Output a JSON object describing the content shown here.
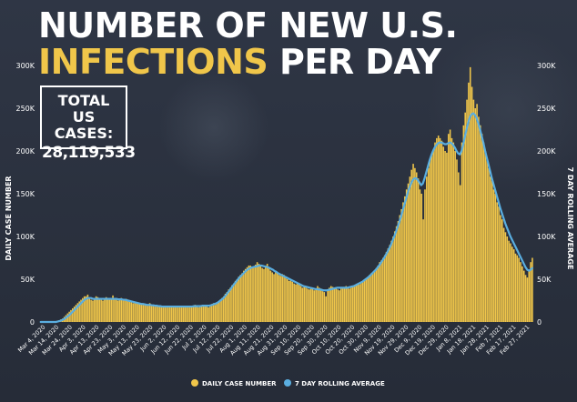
{
  "title": {
    "line1": "NUMBER OF NEW U.S.",
    "line2_accent": "INFECTIONS",
    "line2_rest": " PER DAY"
  },
  "total": {
    "label_line1": "TOTAL",
    "label_line2": "US CASES:",
    "value": "28,119,533"
  },
  "colors": {
    "background": "#2b3240",
    "bars": "#f0c64a",
    "line": "#5aaee0",
    "text": "#ffffff",
    "accent": "#f0c64a"
  },
  "chart_data": {
    "type": "bar",
    "ylabel": "DAILY CASE NUMBER",
    "y2label": "7 DAY ROLLING AVERAGE",
    "ylim": [
      0,
      300000
    ],
    "y_ticks": [
      "0",
      "50K",
      "100K",
      "150K",
      "200K",
      "250K",
      "300K"
    ],
    "x_tick_labels": [
      "Mar 4, 2020",
      "Mar 14, 2020",
      "Mar 24, 2020",
      "Apr 3, 2020",
      "Apr 13, 2020",
      "Apr 23, 2020",
      "May 3, 2020",
      "May 13, 2020",
      "May 23, 2020",
      "Jun 2, 2020",
      "Jun 12, 2020",
      "Jun 22, 2020",
      "Jul 2, 2020",
      "Jul 12, 2020",
      "Jul 22, 2020",
      "Aug 1, 2020",
      "Aug 11, 2020",
      "Aug 21, 2020",
      "Aug 31, 2020",
      "Sep 10, 2020",
      "Sep 20, 2020",
      "Sep 30, 2020",
      "Oct 10, 2020",
      "Oct 20, 2020",
      "Oct 30, 2020",
      "Nov 9, 2020",
      "Nov 19, 2020",
      "Nov 29, 2020",
      "Dec 9, 2020",
      "Dec 19, 2020",
      "Dec 29, 2020",
      "Jan 8, 2021",
      "Jan 18, 2021",
      "Jan 28, 2021",
      "Feb 7, 2021",
      "Feb 17, 2021",
      "Feb 27, 2021"
    ],
    "grid": false,
    "legend_position": "bottom",
    "series": [
      {
        "name": "DAILY CASE NUMBER",
        "type": "bar",
        "values": [
          0,
          0,
          0,
          0,
          0,
          0,
          0,
          0,
          0,
          0,
          1000,
          2000,
          3000,
          4000,
          6000,
          8000,
          10000,
          12000,
          14000,
          16000,
          18000,
          20000,
          22000,
          24000,
          26000,
          28000,
          30000,
          30000,
          32000,
          28000,
          26000,
          25000,
          28000,
          30000,
          29000,
          28000,
          26000,
          25000,
          27000,
          29000,
          28000,
          26000,
          27000,
          31000,
          28000,
          26000,
          25000,
          27000,
          28000,
          26000,
          25000,
          27000,
          24000,
          25000,
          23000,
          22000,
          24000,
          23000,
          22000,
          21000,
          22000,
          20000,
          21000,
          20000,
          19000,
          22000,
          20000,
          19000,
          18000,
          20000,
          19000,
          18000,
          17000,
          19000,
          18000,
          17000,
          18000,
          19000,
          18000,
          17000,
          18000,
          19000,
          17000,
          18000,
          17000,
          19000,
          18000,
          17000,
          18000,
          19000,
          18000,
          19000,
          20000,
          18000,
          17000,
          19000,
          18000,
          19000,
          20000,
          19000,
          17000,
          20000,
          21000,
          22000,
          20000,
          22000,
          24000,
          26000,
          28000,
          30000,
          33000,
          35000,
          38000,
          40000,
          43000,
          45000,
          48000,
          50000,
          53000,
          55000,
          57000,
          60000,
          62000,
          64000,
          66000,
          66000,
          64000,
          65000,
          67000,
          70000,
          68000,
          65000,
          63000,
          62000,
          66000,
          68000,
          64000,
          60000,
          58000,
          56000,
          60000,
          58000,
          55000,
          54000,
          56000,
          55000,
          52000,
          50000,
          48000,
          50000,
          47000,
          45000,
          44000,
          46000,
          44000,
          42000,
          40000,
          42000,
          41000,
          39000,
          38000,
          40000,
          39000,
          37000,
          38000,
          42000,
          40000,
          39000,
          36000,
          35000,
          30000,
          38000,
          40000,
          42000,
          41000,
          40000,
          39000,
          38000,
          37000,
          39000,
          40000,
          41000,
          42000,
          40000,
          39000,
          41000,
          42000,
          43000,
          44000,
          45000,
          44000,
          46000,
          48000,
          49000,
          51000,
          53000,
          55000,
          57000,
          58000,
          60000,
          63000,
          66000,
          70000,
          72000,
          75000,
          78000,
          82000,
          86000,
          90000,
          95000,
          100000,
          106000,
          112000,
          118000,
          125000,
          132000,
          140000,
          147000,
          155000,
          162000,
          170000,
          178000,
          185000,
          180000,
          175000,
          168000,
          155000,
          150000,
          120000,
          155000,
          170000,
          180000,
          190000,
          195000,
          200000,
          210000,
          215000,
          218000,
          215000,
          212000,
          205000,
          200000,
          198000,
          220000,
          225000,
          215000,
          210000,
          200000,
          190000,
          175000,
          160000,
          210000,
          230000,
          245000,
          260000,
          280000,
          298000,
          275000,
          260000,
          250000,
          255000,
          240000,
          230000,
          220000,
          210000,
          200000,
          190000,
          180000,
          170000,
          165000,
          155000,
          150000,
          140000,
          135000,
          125000,
          120000,
          110000,
          105000,
          100000,
          95000,
          92000,
          88000,
          85000,
          80000,
          78000,
          75000,
          70000,
          65000,
          60000,
          55000,
          52000,
          60000,
          70000,
          75000
        ]
      },
      {
        "name": "7 DAY ROLLING AVERAGE",
        "type": "line",
        "values": [
          0,
          0,
          0,
          0,
          0,
          0,
          0,
          0,
          0,
          0,
          500,
          1000,
          1500,
          2500,
          3500,
          5000,
          6500,
          8000,
          10000,
          12000,
          14000,
          16000,
          18000,
          20000,
          22000,
          24000,
          26000,
          27000,
          28000,
          28000,
          28000,
          27000,
          27000,
          27000,
          27000,
          27000,
          27000,
          27000,
          27000,
          27000,
          27000,
          27000,
          27000,
          27000,
          27000,
          27000,
          26500,
          26500,
          26500,
          26000,
          26000,
          25500,
          25000,
          24500,
          24000,
          23500,
          23000,
          22500,
          22000,
          21500,
          21000,
          21000,
          20500,
          20000,
          20000,
          20000,
          19500,
          19500,
          19000,
          19000,
          18500,
          18500,
          18000,
          18000,
          18000,
          18000,
          18000,
          18000,
          18000,
          18000,
          18000,
          18000,
          18000,
          18000,
          18000,
          18000,
          18000,
          18000,
          18000,
          18000,
          18000,
          18500,
          18500,
          18500,
          18500,
          18500,
          19000,
          19000,
          19000,
          19000,
          19000,
          19500,
          20000,
          21000,
          21500,
          22500,
          24000,
          25500,
          27000,
          29000,
          31500,
          34000,
          36500,
          39000,
          42000,
          44500,
          47000,
          49500,
          52000,
          54000,
          56000,
          58000,
          60000,
          61500,
          62500,
          63500,
          64000,
          64500,
          65000,
          65500,
          66000,
          66000,
          65500,
          65000,
          64500,
          64000,
          63000,
          62000,
          61000,
          59500,
          58500,
          57000,
          56000,
          55000,
          54000,
          53000,
          52000,
          51000,
          50000,
          49000,
          48000,
          47000,
          46000,
          45000,
          44000,
          43000,
          42000,
          41500,
          41000,
          40500,
          40000,
          39500,
          39000,
          38500,
          38500,
          38000,
          38000,
          37500,
          37000,
          37000,
          37000,
          37500,
          38000,
          38500,
          39000,
          39500,
          40000,
          40000,
          40000,
          40000,
          40000,
          40000,
          40000,
          40500,
          41000,
          41500,
          42000,
          43000,
          44000,
          45000,
          46000,
          47000,
          48500,
          50000,
          51500,
          53000,
          55000,
          57000,
          59000,
          61000,
          63500,
          66000,
          69000,
          72000,
          75000,
          78500,
          82000,
          86000,
          90000,
          95000,
          100000,
          105500,
          111000,
          117000,
          123000,
          130000,
          137000,
          144000,
          151000,
          157000,
          162000,
          166000,
          168000,
          168000,
          166000,
          163000,
          160000,
          162000,
          168000,
          175000,
          182000,
          189000,
          195000,
          200000,
          204000,
          207000,
          209000,
          210000,
          210000,
          209000,
          208000,
          208000,
          209000,
          210000,
          209000,
          207000,
          204000,
          200000,
          197000,
          196000,
          200000,
          208000,
          217000,
          226000,
          234000,
          240000,
          243000,
          244000,
          242000,
          238000,
          232000,
          225000,
          217000,
          209000,
          200000,
          192000,
          184000,
          176000,
          168000,
          161000,
          154000,
          147000,
          140000,
          133000,
          127000,
          121000,
          115000,
          110000,
          105000,
          100000,
          96000,
          92000,
          88000,
          84000,
          80000,
          76000,
          72000,
          68000,
          64000,
          61000,
          60000,
          61000,
          63000
        ]
      }
    ]
  }
}
